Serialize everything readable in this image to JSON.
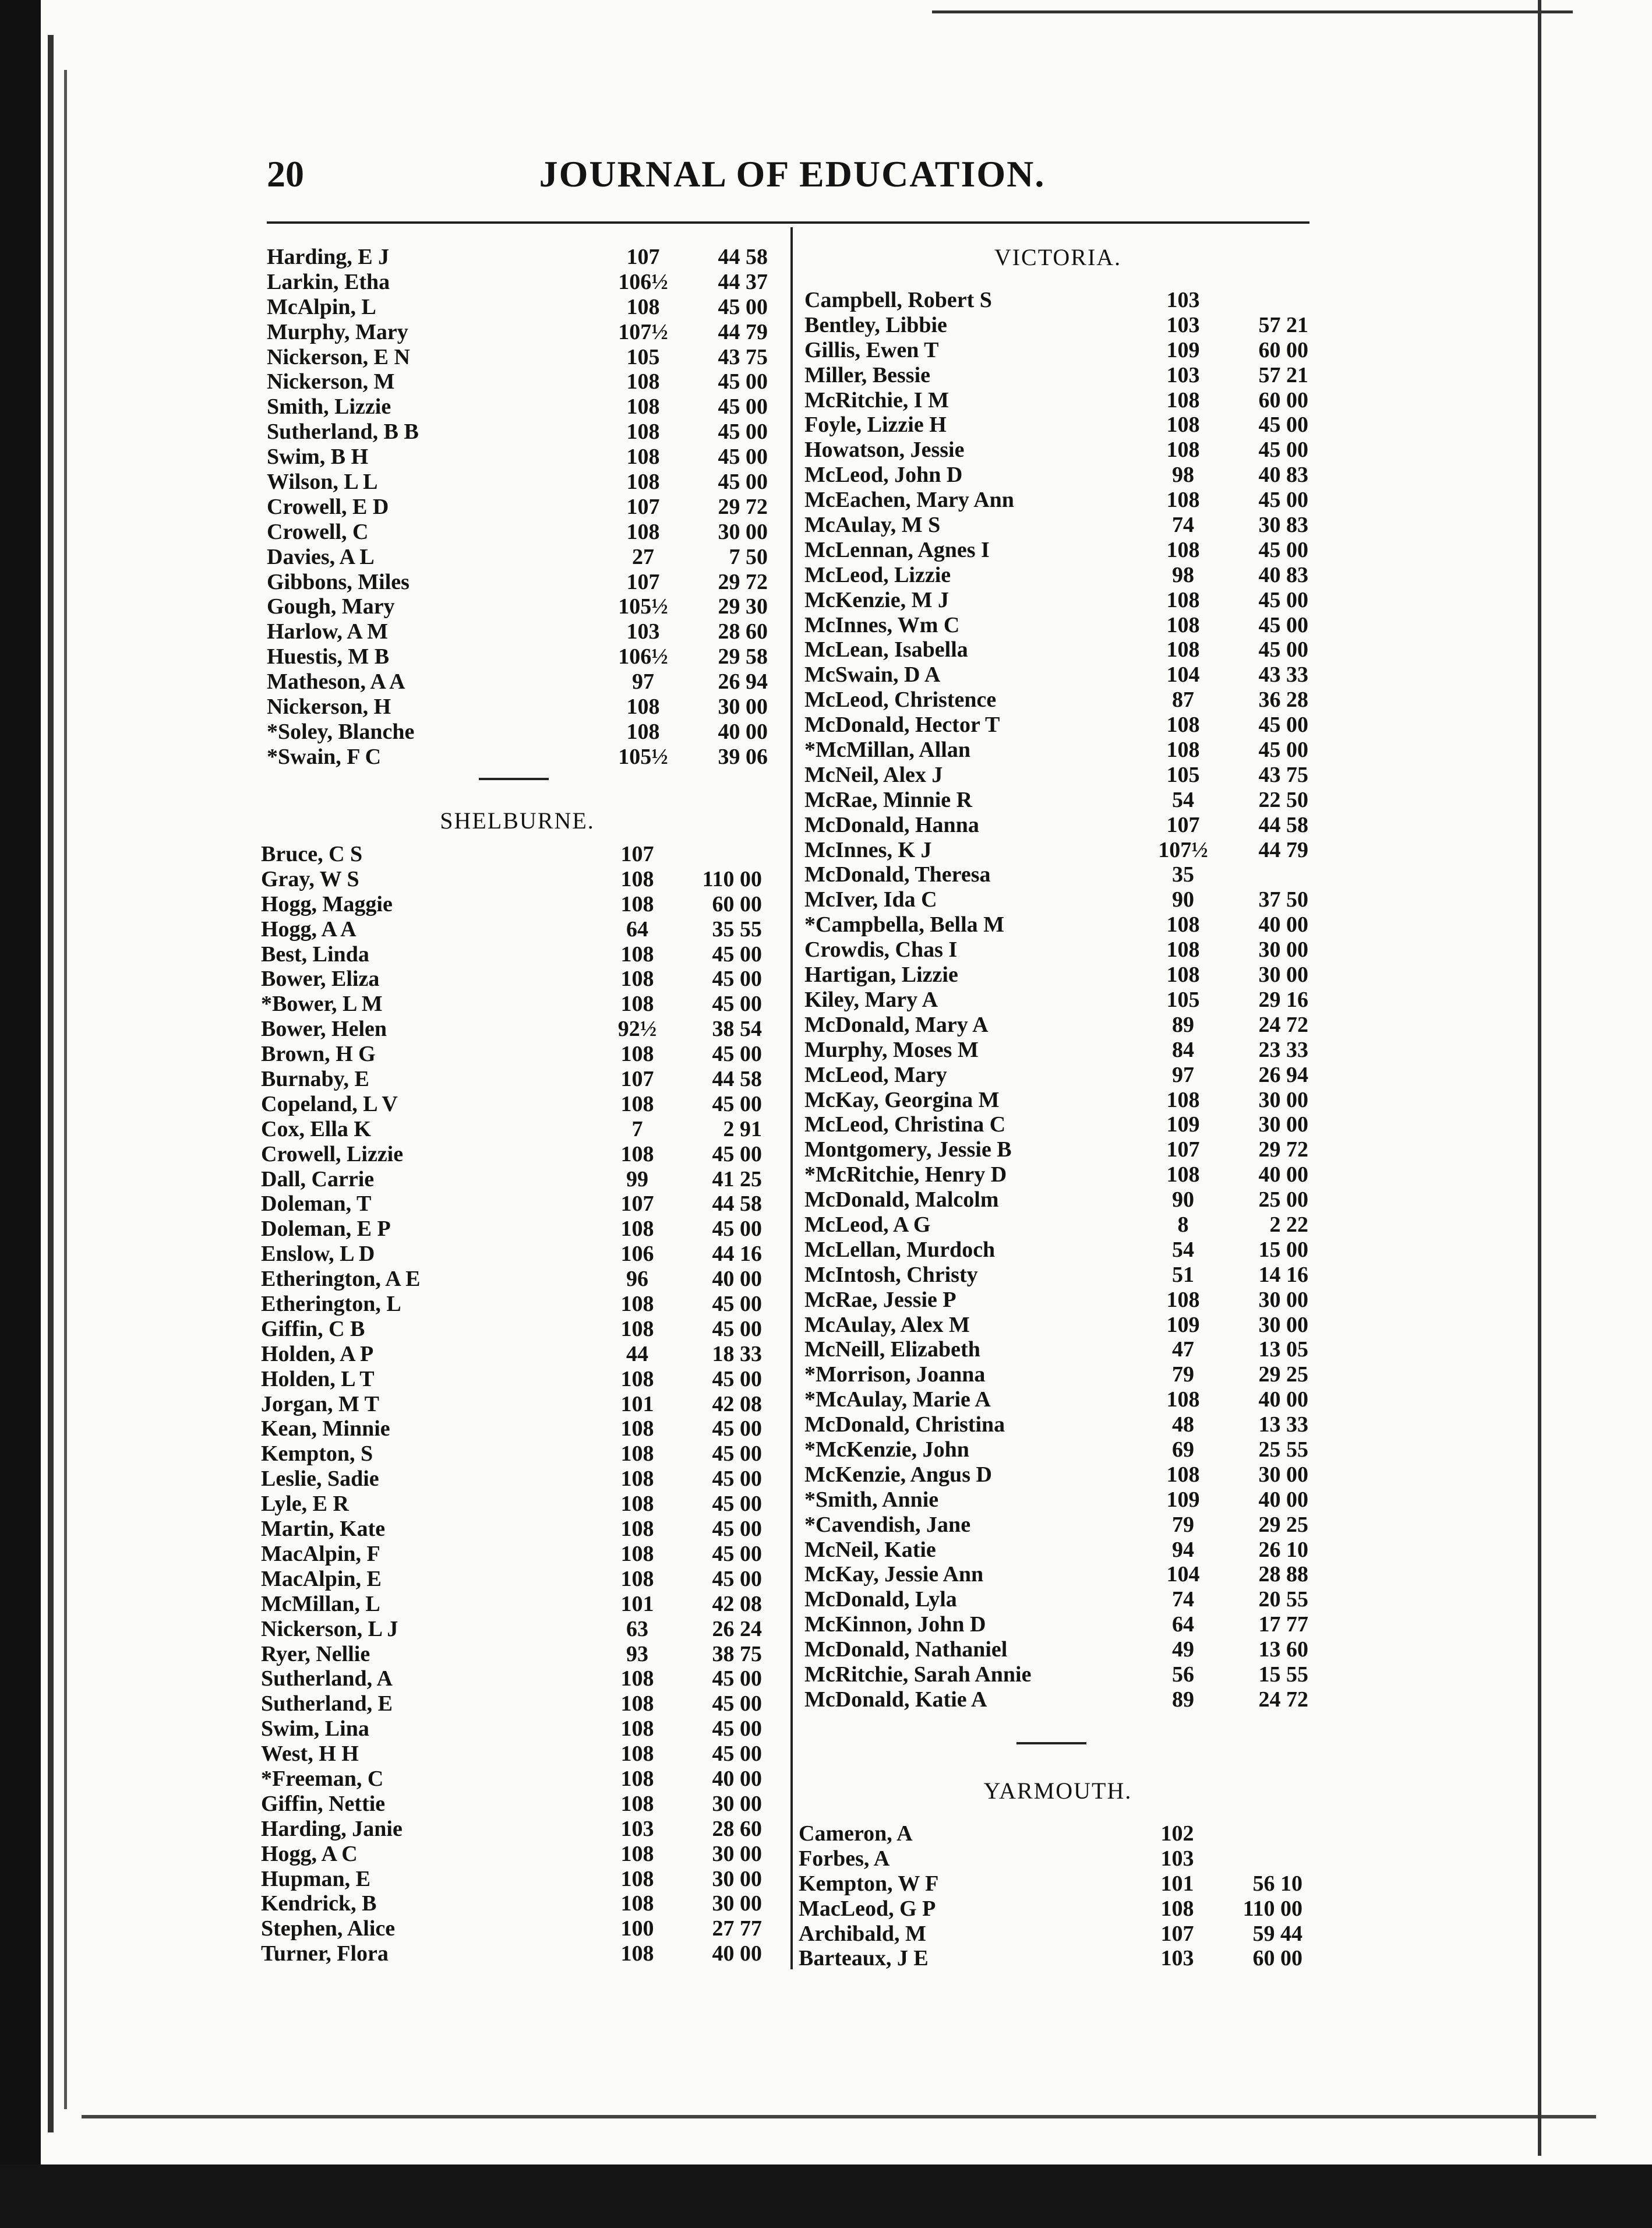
{
  "header": {
    "page_number": "20",
    "title": "JOURNAL OF EDUCATION."
  },
  "left_column": {
    "continued_rows": [
      [
        "Harding, E J",
        "107",
        "44 58"
      ],
      [
        "Larkin, Etha",
        "106½",
        "44 37"
      ],
      [
        "McAlpin, L",
        "108",
        "45 00"
      ],
      [
        "Murphy, Mary",
        "107½",
        "44 79"
      ],
      [
        "Nickerson, E N",
        "105",
        "43 75"
      ],
      [
        "Nickerson, M",
        "108",
        "45 00"
      ],
      [
        "Smith, Lizzie",
        "108",
        "45 00"
      ],
      [
        "Sutherland, B B",
        "108",
        "45 00"
      ],
      [
        "Swim, B H",
        "108",
        "45 00"
      ],
      [
        "Wilson, L L",
        "108",
        "45 00"
      ],
      [
        "Crowell, E D",
        "107",
        "29 72"
      ],
      [
        "Crowell, C",
        "108",
        "30 00"
      ],
      [
        "Davies, A L",
        "27",
        "7 50"
      ],
      [
        "Gibbons, Miles",
        "107",
        "29 72"
      ],
      [
        "Gough, Mary",
        "105½",
        "29 30"
      ],
      [
        "Harlow, A M",
        "103",
        "28 60"
      ],
      [
        "Huestis, M B",
        "106½",
        "29 58"
      ],
      [
        "Matheson, A A",
        "97",
        "26 94"
      ],
      [
        "Nickerson, H",
        "108",
        "30 00"
      ],
      [
        "*Soley, Blanche",
        "108",
        "40 00"
      ],
      [
        "*Swain, F C",
        "105½",
        "39 06"
      ]
    ],
    "shelburne": {
      "title": "SHELBURNE.",
      "rows": [
        [
          "Bruce, C S",
          "107",
          ""
        ],
        [
          "Gray, W S",
          "108",
          "110 00"
        ],
        [
          "Hogg, Maggie",
          "108",
          "60 00"
        ],
        [
          "Hogg, A A",
          "64",
          "35 55"
        ],
        [
          "Best, Linda",
          "108",
          "45 00"
        ],
        [
          "Bower, Eliza",
          "108",
          "45 00"
        ],
        [
          "*Bower, L M",
          "108",
          "45 00"
        ],
        [
          "Bower, Helen",
          "92½",
          "38 54"
        ],
        [
          "Brown, H G",
          "108",
          "45 00"
        ],
        [
          "Burnaby, E",
          "107",
          "44 58"
        ],
        [
          "Copeland, L V",
          "108",
          "45 00"
        ],
        [
          "Cox, Ella K",
          "7",
          "2 91"
        ],
        [
          "Crowell, Lizzie",
          "108",
          "45 00"
        ],
        [
          "Dall, Carrie",
          "99",
          "41 25"
        ],
        [
          "Doleman, T",
          "107",
          "44 58"
        ],
        [
          "Doleman, E P",
          "108",
          "45 00"
        ],
        [
          "Enslow, L D",
          "106",
          "44 16"
        ],
        [
          "Etherington, A E",
          "96",
          "40 00"
        ],
        [
          "Etherington, L",
          "108",
          "45 00"
        ],
        [
          "Giffin, C B",
          "108",
          "45 00"
        ],
        [
          "Holden, A P",
          "44",
          "18 33"
        ],
        [
          "Holden, L T",
          "108",
          "45 00"
        ],
        [
          "Jorgan, M T",
          "101",
          "42 08"
        ],
        [
          "Kean, Minnie",
          "108",
          "45 00"
        ],
        [
          "Kempton, S",
          "108",
          "45 00"
        ],
        [
          "Leslie, Sadie",
          "108",
          "45 00"
        ],
        [
          "Lyle, E R",
          "108",
          "45 00"
        ],
        [
          "Martin, Kate",
          "108",
          "45 00"
        ],
        [
          "MacAlpin, F",
          "108",
          "45 00"
        ],
        [
          "MacAlpin, E",
          "108",
          "45 00"
        ],
        [
          "McMillan, L",
          "101",
          "42 08"
        ],
        [
          "Nickerson, L J",
          "63",
          "26 24"
        ],
        [
          "Ryer, Nellie",
          "93",
          "38 75"
        ],
        [
          "Sutherland, A",
          "108",
          "45 00"
        ],
        [
          "Sutherland, E",
          "108",
          "45 00"
        ],
        [
          "Swim, Lina",
          "108",
          "45 00"
        ],
        [
          "West, H H",
          "108",
          "45 00"
        ],
        [
          "*Freeman, C",
          "108",
          "40 00"
        ],
        [
          "Giffin, Nettie",
          "108",
          "30 00"
        ],
        [
          "Harding, Janie",
          "103",
          "28 60"
        ],
        [
          "Hogg, A C",
          "108",
          "30 00"
        ],
        [
          "Hupman, E",
          "108",
          "30 00"
        ],
        [
          "Kendrick, B",
          "108",
          "30 00"
        ],
        [
          "Stephen, Alice",
          "100",
          "27 77"
        ],
        [
          "Turner, Flora",
          "108",
          "40 00"
        ]
      ]
    }
  },
  "right_column": {
    "victoria": {
      "title": "VICTORIA.",
      "rows": [
        [
          "Campbell, Robert S",
          "103",
          ""
        ],
        [
          "Bentley, Libbie",
          "103",
          "57 21"
        ],
        [
          "Gillis, Ewen T",
          "109",
          "60 00"
        ],
        [
          "Miller, Bessie",
          "103",
          "57 21"
        ],
        [
          "McRitchie, I M",
          "108",
          "60 00"
        ],
        [
          "Foyle, Lizzie H",
          "108",
          "45 00"
        ],
        [
          "Howatson, Jessie",
          "108",
          "45 00"
        ],
        [
          "McLeod, John D",
          "98",
          "40 83"
        ],
        [
          "McEachen, Mary Ann",
          "108",
          "45 00"
        ],
        [
          "McAulay, M S",
          "74",
          "30 83"
        ],
        [
          "McLennan, Agnes I",
          "108",
          "45 00"
        ],
        [
          "McLeod, Lizzie",
          "98",
          "40 83"
        ],
        [
          "McKenzie, M J",
          "108",
          "45 00"
        ],
        [
          "McInnes, Wm C",
          "108",
          "45 00"
        ],
        [
          "McLean, Isabella",
          "108",
          "45 00"
        ],
        [
          "McSwain, D A",
          "104",
          "43 33"
        ],
        [
          "McLeod, Christence",
          "87",
          "36 28"
        ],
        [
          "McDonald, Hector T",
          "108",
          "45 00"
        ],
        [
          "*McMillan, Allan",
          "108",
          "45 00"
        ],
        [
          "McNeil, Alex J",
          "105",
          "43 75"
        ],
        [
          "McRae, Minnie R",
          "54",
          "22 50"
        ],
        [
          "McDonald, Hanna",
          "107",
          "44 58"
        ],
        [
          "McInnes, K J",
          "107½",
          "44 79"
        ],
        [
          "McDonald, Theresa",
          "35",
          ""
        ],
        [
          "McIver, Ida C",
          "90",
          "37 50"
        ],
        [
          "*Campbella, Bella M",
          "108",
          "40 00"
        ],
        [
          "Crowdis, Chas I",
          "108",
          "30 00"
        ],
        [
          "Hartigan, Lizzie",
          "108",
          "30 00"
        ],
        [
          "Kiley, Mary A",
          "105",
          "29 16"
        ],
        [
          "McDonald, Mary A",
          "89",
          "24 72"
        ],
        [
          "Murphy, Moses M",
          "84",
          "23 33"
        ],
        [
          "McLeod, Mary",
          "97",
          "26 94"
        ],
        [
          "McKay, Georgina M",
          "108",
          "30 00"
        ],
        [
          "McLeod, Christina C",
          "109",
          "30 00"
        ],
        [
          "Montgomery, Jessie B",
          "107",
          "29 72"
        ],
        [
          "*McRitchie, Henry D",
          "108",
          "40 00"
        ],
        [
          "McDonald, Malcolm",
          "90",
          "25 00"
        ],
        [
          "McLeod, A G",
          "8",
          "2 22"
        ],
        [
          "McLellan, Murdoch",
          "54",
          "15 00"
        ],
        [
          "McIntosh, Christy",
          "51",
          "14 16"
        ],
        [
          "McRae, Jessie P",
          "108",
          "30 00"
        ],
        [
          "McAulay, Alex M",
          "109",
          "30 00"
        ],
        [
          "McNeill, Elizabeth",
          "47",
          "13 05"
        ],
        [
          "*Morrison, Joanna",
          "79",
          "29 25"
        ],
        [
          "*McAulay, Marie A",
          "108",
          "40 00"
        ],
        [
          "McDonald, Christina",
          "48",
          "13 33"
        ],
        [
          "*McKenzie, John",
          "69",
          "25 55"
        ],
        [
          "McKenzie, Angus D",
          "108",
          "30 00"
        ],
        [
          "*Smith, Annie",
          "109",
          "40 00"
        ],
        [
          "*Cavendish, Jane",
          "79",
          "29 25"
        ],
        [
          "McNeil, Katie",
          "94",
          "26 10"
        ],
        [
          "McKay, Jessie Ann",
          "104",
          "28 88"
        ],
        [
          "McDonald, Lyla",
          "74",
          "20 55"
        ],
        [
          "McKinnon, John D",
          "64",
          "17 77"
        ],
        [
          "McDonald, Nathaniel",
          "49",
          "13 60"
        ],
        [
          "McRitchie, Sarah Annie",
          "56",
          "15 55"
        ],
        [
          "McDonald, Katie A",
          "89",
          "24 72"
        ]
      ]
    },
    "yarmouth": {
      "title": "YARMOUTH.",
      "rows": [
        [
          "Cameron, A",
          "102",
          ""
        ],
        [
          "Forbes, A",
          "103",
          ""
        ],
        [
          "Kempton, W F",
          "101",
          "56 10"
        ],
        [
          "MacLeod, G P",
          "108",
          "110 00"
        ],
        [
          "Archibald, M",
          "107",
          "59 44"
        ],
        [
          "Barteaux, J E",
          "103",
          "60 00"
        ]
      ]
    }
  }
}
